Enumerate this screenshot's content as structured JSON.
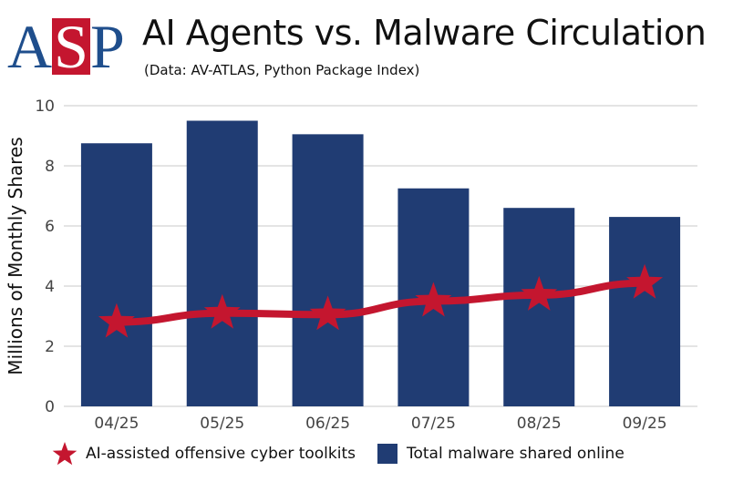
{
  "header": {
    "logo_text": "ASP",
    "title": "AI Agents vs. Malware Circulation",
    "subtitle": "(Data: AV-ATLAS, Python Package Index)"
  },
  "colors": {
    "bar": "#203c73",
    "line": "#c4162f",
    "grid": "#dcdcdc",
    "logo_blue": "#1f4e8c"
  },
  "chart_data": {
    "type": "bar+line",
    "title": "AI Agents vs. Malware Circulation",
    "subtitle": "(Data: AV-ATLAS, Python Package Index)",
    "xlabel": "",
    "ylabel": "Millions of Monthly Shares",
    "ylim": [
      0,
      10
    ],
    "yticks": [
      "0",
      "2",
      "4",
      "6",
      "8",
      "10"
    ],
    "grid": true,
    "legend_position": "bottom",
    "categories": [
      "04/25",
      "05/25",
      "06/25",
      "07/25",
      "08/25",
      "09/25"
    ],
    "series": [
      {
        "name": "AI-assisted offensive cyber toolkits",
        "type": "line",
        "marker": "star",
        "color": "#c4162f",
        "values": [
          2.8,
          3.1,
          3.05,
          3.5,
          3.7,
          4.1
        ]
      },
      {
        "name": "Total malware shared online",
        "type": "bar",
        "color": "#203c73",
        "values": [
          8.75,
          9.5,
          9.05,
          7.25,
          6.6,
          6.3
        ]
      }
    ]
  }
}
